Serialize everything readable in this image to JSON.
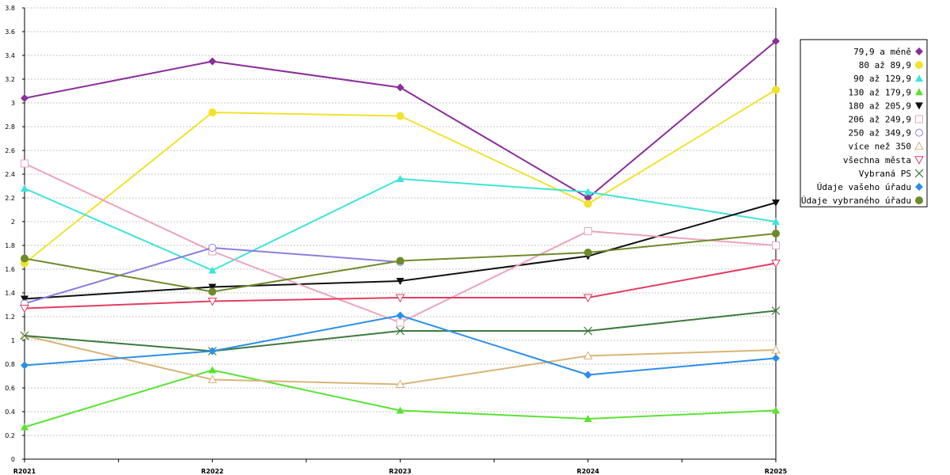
{
  "chart_data": {
    "type": "line",
    "title": "",
    "xlabel": "",
    "ylabel": "",
    "categories": [
      "R2021",
      "R2022",
      "R2023",
      "R2024",
      "R2025"
    ],
    "ylim": [
      0,
      3.8
    ],
    "yticks": [
      "0",
      "0.2",
      "0.4",
      "0.6",
      "0.8",
      "1",
      "1.2",
      "1.4",
      "1.6",
      "1.8",
      "2",
      "2.2",
      "2.4",
      "2.6",
      "2.8",
      "3",
      "3.2",
      "3.4",
      "3.6",
      "3.8"
    ],
    "grid": true,
    "legend_position": "right",
    "series": [
      {
        "name": "79,9 a méně",
        "color": "#8b2d9a",
        "marker": "diamond",
        "values": [
          3.04,
          3.35,
          3.13,
          2.2,
          3.52
        ]
      },
      {
        "name": "80 až 89,9",
        "color": "#f2e22b",
        "marker": "circle",
        "values": [
          1.65,
          2.92,
          2.89,
          2.15,
          3.11
        ]
      },
      {
        "name": "90 až 129,9",
        "color": "#3de4d8",
        "marker": "triangle",
        "values": [
          2.28,
          1.59,
          2.36,
          2.25,
          2.0
        ]
      },
      {
        "name": "130 až 179,9",
        "color": "#5ae234",
        "marker": "triangle",
        "values": [
          0.27,
          0.75,
          0.41,
          0.34,
          0.41
        ]
      },
      {
        "name": "180 až 205,9",
        "color": "#101010",
        "marker": "triangle-down",
        "values": [
          1.35,
          1.45,
          1.5,
          1.71,
          2.16
        ]
      },
      {
        "name": "206 až 249,9",
        "color": "#eba3bd",
        "marker": "square-open",
        "values": [
          2.49,
          1.75,
          1.15,
          1.92,
          1.8
        ]
      },
      {
        "name": "250 až 349,9",
        "color": "#8a7ee0",
        "marker": "circle-open",
        "values": [
          1.31,
          1.78,
          1.66,
          null,
          null
        ]
      },
      {
        "name": "více než 350",
        "color": "#d7b477",
        "marker": "triangle-open",
        "values": [
          1.04,
          0.67,
          0.63,
          0.87,
          0.92
        ]
      },
      {
        "name": "všechna města",
        "color": "#e23c62",
        "marker": "triangle-down-open",
        "values": [
          1.27,
          1.33,
          1.36,
          1.36,
          1.65
        ]
      },
      {
        "name": "Vybraná PS",
        "color": "#3d7a3d",
        "marker": "x",
        "values": [
          1.04,
          0.91,
          1.08,
          1.08,
          1.25
        ]
      },
      {
        "name": "Údaje vašeho úřadu",
        "color": "#2b8fe8",
        "marker": "diamond",
        "values": [
          0.79,
          0.91,
          1.21,
          0.71,
          0.85
        ]
      },
      {
        "name": "Údaje vybraného úřadu",
        "color": "#6e8a2b",
        "marker": "circle",
        "values": [
          1.69,
          1.41,
          1.67,
          1.74,
          1.9
        ]
      }
    ]
  }
}
